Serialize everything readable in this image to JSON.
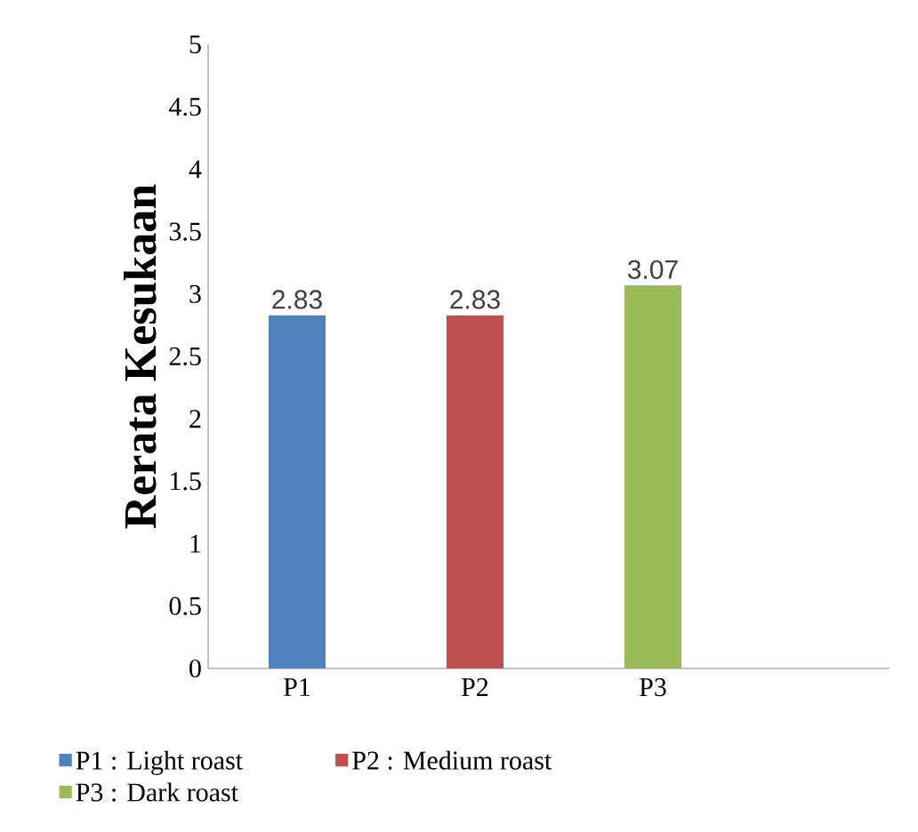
{
  "chart_data": {
    "type": "bar",
    "ylabel": "Rerata Kesukaan",
    "categories": [
      "P1",
      "P2",
      "P3"
    ],
    "series": [
      {
        "name": "P1 : Light roast",
        "color": "#4f81bd",
        "values": [
          2.83,
          null,
          null
        ]
      },
      {
        "name": "P2 : Medium roast",
        "color": "#c0504d",
        "values": [
          null,
          2.83,
          null
        ]
      },
      {
        "name": "P3 : Dark roast",
        "color": "#9bbb59",
        "values": [
          null,
          null,
          3.07
        ]
      }
    ],
    "ylim": [
      0,
      5
    ],
    "yticks": [
      0,
      0.5,
      1,
      1.5,
      2,
      2.5,
      3,
      3.5,
      4,
      4.5,
      5
    ],
    "data_labels": true,
    "grid": false,
    "legend": "bottom"
  }
}
